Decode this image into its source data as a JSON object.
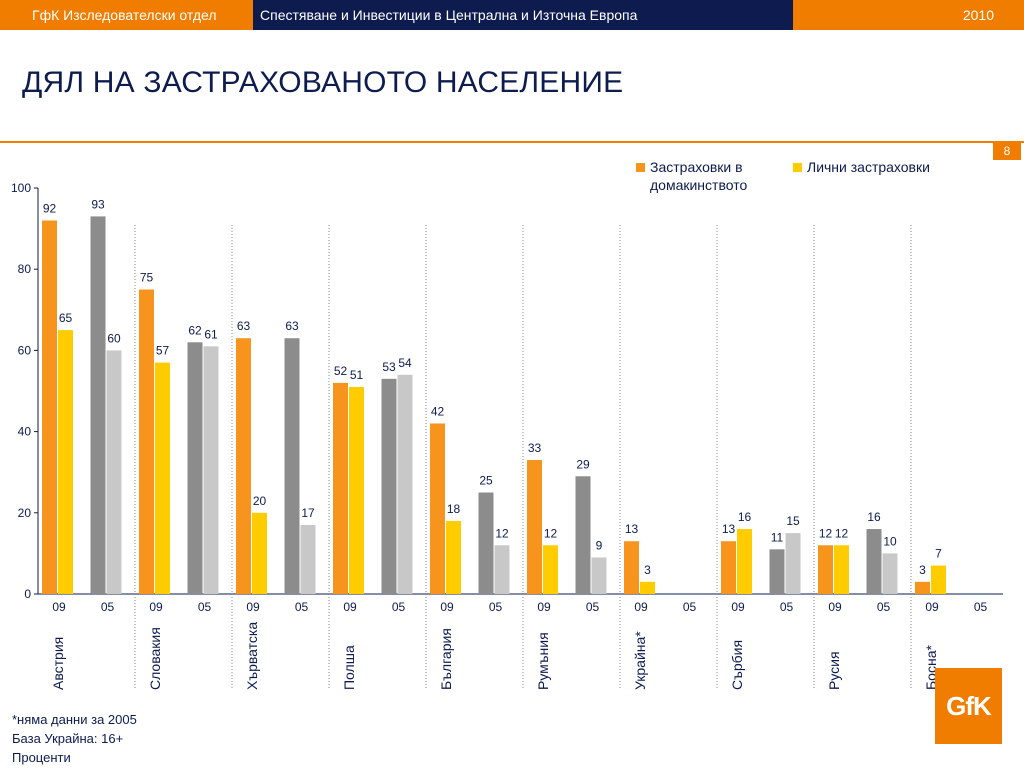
{
  "header": {
    "department": "ГфК Изследователски отдел",
    "study": "Спестяване и Инвестиции в Централна и Източна Европа",
    "year": "2010"
  },
  "page_title": "ДЯЛ НА ЗАСТРАХОВАНОТО НАСЕЛЕНИЕ",
  "page_number": "8",
  "footnotes": {
    "no_data": "*няма данни за 2005",
    "base": "База Украйна: 16+",
    "unit": "Проценти"
  },
  "logo_text": "GfK",
  "colors": {
    "household_09": "#f7941d",
    "personal_09": "#ffcc00",
    "household_05": "#8c8c8c",
    "personal_05": "#c8c8c8",
    "text": "#0d1b4f",
    "accent": "#f07d00"
  },
  "chart_data": {
    "type": "bar",
    "ylim": [
      0,
      100
    ],
    "yticks": [
      0,
      20,
      40,
      60,
      80,
      100
    ],
    "legend": {
      "household": "Застраховки в домакинството",
      "personal": "Лични застраховки",
      "placement": "top-right"
    },
    "series": [
      {
        "name": "Застраховки в домакинството",
        "key": "household"
      },
      {
        "name": "Лични застраховки",
        "key": "personal"
      }
    ],
    "countries": [
      {
        "name": "Австрия",
        "groups": [
          {
            "year": "09",
            "household": 92,
            "personal": 65
          },
          {
            "year": "05",
            "household": 93,
            "personal": 60
          }
        ]
      },
      {
        "name": "Словакия",
        "groups": [
          {
            "year": "09",
            "household": 75,
            "personal": 57
          },
          {
            "year": "05",
            "household": 62,
            "personal": 61
          }
        ]
      },
      {
        "name": "Хърватска",
        "groups": [
          {
            "year": "09",
            "household": 63,
            "personal": 20
          },
          {
            "year": "05",
            "household": 63,
            "personal": 17
          }
        ]
      },
      {
        "name": "Полша",
        "groups": [
          {
            "year": "09",
            "household": 52,
            "personal": 51
          },
          {
            "year": "05",
            "household": 53,
            "personal": 54
          }
        ]
      },
      {
        "name": "България",
        "groups": [
          {
            "year": "09",
            "household": 42,
            "personal": 18
          },
          {
            "year": "05",
            "household": 25,
            "personal": 12
          }
        ]
      },
      {
        "name": "Румъния",
        "groups": [
          {
            "year": "09",
            "household": 33,
            "personal": 12
          },
          {
            "year": "05",
            "household": 29,
            "personal": 9
          }
        ]
      },
      {
        "name": "Украйна*",
        "groups": [
          {
            "year": "09",
            "household": 13,
            "personal": 3
          },
          {
            "year": "05",
            "household": null,
            "personal": null
          }
        ]
      },
      {
        "name": "Сърбия",
        "groups": [
          {
            "year": "09",
            "household": 13,
            "personal": 16
          },
          {
            "year": "05",
            "household": 11,
            "personal": 15
          }
        ]
      },
      {
        "name": "Русия",
        "groups": [
          {
            "year": "09",
            "household": 12,
            "personal": 12
          },
          {
            "year": "05",
            "household": 16,
            "personal": 10
          }
        ]
      },
      {
        "name": "Босна*",
        "groups": [
          {
            "year": "09",
            "household": 3,
            "personal": 7
          },
          {
            "year": "05",
            "household": null,
            "personal": null
          }
        ]
      }
    ]
  }
}
